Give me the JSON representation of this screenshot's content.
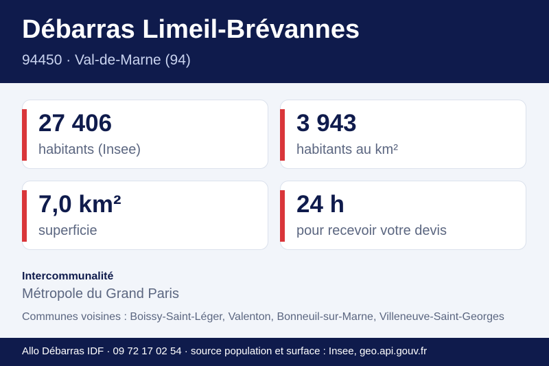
{
  "header": {
    "title": "Débarras Limeil-Brévannes",
    "subtitle": "94450 · Val-de-Marne (94)"
  },
  "stats": [
    {
      "value": "27 406",
      "label": "habitants (Insee)"
    },
    {
      "value": "3 943",
      "label": "habitants au km²"
    },
    {
      "value": "7,0 km²",
      "label": "superficie"
    },
    {
      "value": "24 h",
      "label": "pour recevoir votre devis"
    }
  ],
  "intercommunalite": {
    "title": "Intercommunalité",
    "value": "Métropole du Grand Paris"
  },
  "neighbors": "Communes voisines : Boissy-Saint-Léger, Valenton, Bonneuil-sur-Marne, Villeneuve-Saint-Georges",
  "footer": "Allo Débarras IDF · 09 72 17 02 54 · source population et surface : Insee, geo.api.gouv.fr",
  "colors": {
    "navy": "#0f1b4c",
    "accent_red": "#d9363a",
    "muted_text": "#5b6680",
    "background": "#f2f5fa"
  }
}
